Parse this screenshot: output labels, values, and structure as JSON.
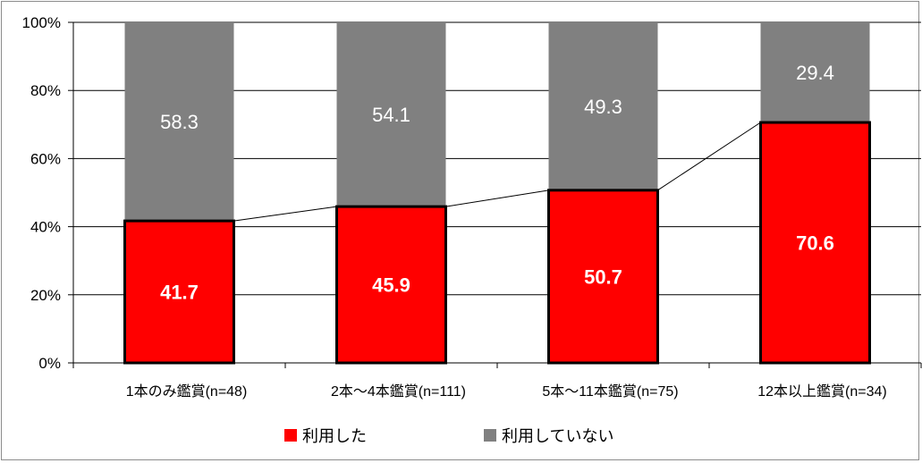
{
  "chart_data": {
    "type": "bar",
    "stacked": true,
    "categories": [
      "1本のみ鑑賞(n=48)",
      "2本～4本鑑賞(n=111)",
      "5本～11本鑑賞(n=75)",
      "12本以上鑑賞(n=34)"
    ],
    "series": [
      {
        "name": "利用した",
        "values": [
          41.7,
          45.9,
          50.7,
          70.6
        ],
        "color": "#ff0000"
      },
      {
        "name": "利用していない",
        "values": [
          58.3,
          54.1,
          49.3,
          29.4
        ],
        "color": "#808080"
      }
    ],
    "ylim": [
      0,
      100
    ],
    "yticks": [
      "0%",
      "20%",
      "40%",
      "60%",
      "80%",
      "100%"
    ],
    "grid": true,
    "series_line": true,
    "legend": "bottom"
  }
}
